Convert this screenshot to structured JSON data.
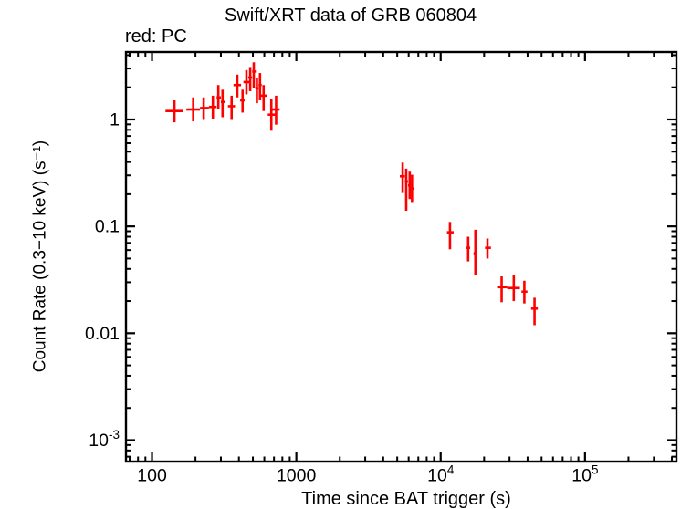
{
  "chart_data": {
    "type": "scatter",
    "title": "Swift/XRT data of GRB 060804",
    "legend_label": "red: PC",
    "xlabel": "Time since BAT trigger (s)",
    "ylabel": "Count Rate (0.3−10 keV) (s⁻¹)",
    "xscale": "log",
    "yscale": "log",
    "xlim": [
      66,
      430000
    ],
    "ylim": [
      0.00063,
      4.28
    ],
    "grid": false,
    "x_ticks": [
      {
        "v": 100,
        "label": "100"
      },
      {
        "v": 1000,
        "label": "1000"
      },
      {
        "v": 10000,
        "label": "10^4"
      },
      {
        "v": 100000,
        "label": "10^5"
      }
    ],
    "y_ticks": [
      {
        "v": 1,
        "label": "1"
      },
      {
        "v": 0.1,
        "label": "0.1"
      },
      {
        "v": 0.01,
        "label": "0.01"
      },
      {
        "v": 0.001,
        "label": "10^-3"
      }
    ],
    "styles": {
      "data_color": "#ff0000",
      "axis_color": "#000000",
      "background": "#ffffff"
    },
    "series": [
      {
        "name": "PC",
        "color": "#ff0000",
        "marker": "cross-errorbar",
        "points": [
          {
            "t": 143,
            "t_min": 124,
            "t_max": 165,
            "rate": 1.2,
            "rate_min": 0.94,
            "rate_max": 1.51
          },
          {
            "t": 193,
            "t_min": 173,
            "t_max": 215,
            "rate": 1.24,
            "rate_min": 0.96,
            "rate_max": 1.61
          },
          {
            "t": 228,
            "t_min": 215,
            "t_max": 248,
            "rate": 1.28,
            "rate_min": 0.99,
            "rate_max": 1.61
          },
          {
            "t": 264,
            "t_min": 248,
            "t_max": 280,
            "rate": 1.31,
            "rate_min": 1.02,
            "rate_max": 1.67
          },
          {
            "t": 288,
            "t_min": 280,
            "t_max": 300,
            "rate": 1.61,
            "rate_min": 1.24,
            "rate_max": 2.1
          },
          {
            "t": 308,
            "t_min": 300,
            "t_max": 319,
            "rate": 1.46,
            "rate_min": 1.05,
            "rate_max": 1.9
          },
          {
            "t": 356,
            "t_min": 336,
            "t_max": 376,
            "rate": 1.33,
            "rate_min": 0.99,
            "rate_max": 1.67
          },
          {
            "t": 390,
            "t_min": 367,
            "t_max": 414,
            "rate": 2.1,
            "rate_min": 1.61,
            "rate_max": 2.63
          },
          {
            "t": 424,
            "t_min": 408,
            "t_max": 438,
            "rate": 1.51,
            "rate_min": 1.16,
            "rate_max": 1.9
          },
          {
            "t": 451,
            "t_min": 430,
            "t_max": 479,
            "rate": 2.24,
            "rate_min": 1.72,
            "rate_max": 2.9
          },
          {
            "t": 479,
            "t_min": 464,
            "t_max": 494,
            "rate": 2.47,
            "rate_min": 1.84,
            "rate_max": 3.1
          },
          {
            "t": 507,
            "t_min": 494,
            "t_max": 524,
            "rate": 2.81,
            "rate_min": 1.96,
            "rate_max": 3.43
          },
          {
            "t": 533,
            "t_min": 520,
            "t_max": 547,
            "rate": 1.96,
            "rate_min": 1.42,
            "rate_max": 2.47
          },
          {
            "t": 560,
            "t_min": 547,
            "t_max": 576,
            "rate": 2.1,
            "rate_min": 1.51,
            "rate_max": 2.72
          },
          {
            "t": 593,
            "t_min": 568,
            "t_max": 626,
            "rate": 1.67,
            "rate_min": 1.2,
            "rate_max": 2.1
          },
          {
            "t": 671,
            "t_min": 634,
            "t_max": 718,
            "rate": 1.11,
            "rate_min": 0.785,
            "rate_max": 1.56
          },
          {
            "t": 724,
            "t_min": 678,
            "t_max": 766,
            "rate": 1.24,
            "rate_min": 0.894,
            "rate_max": 1.67
          },
          {
            "t": 5450,
            "t_min": 5210,
            "t_max": 5640,
            "rate": 0.294,
            "rate_min": 0.205,
            "rate_max": 0.395
          },
          {
            "t": 5770,
            "t_min": 5640,
            "t_max": 5940,
            "rate": 0.263,
            "rate_min": 0.14,
            "rate_max": 0.347
          },
          {
            "t": 6100,
            "t_min": 5940,
            "t_max": 6240,
            "rate": 0.242,
            "rate_min": 0.18,
            "rate_max": 0.325
          },
          {
            "t": 6330,
            "t_min": 6240,
            "t_max": 6580,
            "rate": 0.226,
            "rate_min": 0.169,
            "rate_max": 0.304
          },
          {
            "t": 11600,
            "t_min": 11050,
            "t_max": 12300,
            "rate": 0.088,
            "rate_min": 0.061,
            "rate_max": 0.11
          },
          {
            "t": 15500,
            "t_min": 15100,
            "t_max": 16000,
            "rate": 0.063,
            "rate_min": 0.047,
            "rate_max": 0.08
          },
          {
            "t": 17400,
            "t_min": 16900,
            "t_max": 17900,
            "rate": 0.056,
            "rate_min": 0.035,
            "rate_max": 0.093
          },
          {
            "t": 21100,
            "t_min": 20300,
            "t_max": 22300,
            "rate": 0.063,
            "rate_min": 0.05,
            "rate_max": 0.077
          },
          {
            "t": 26450,
            "t_min": 24600,
            "t_max": 28900,
            "rate": 0.027,
            "rate_min": 0.0195,
            "rate_max": 0.034
          },
          {
            "t": 32100,
            "t_min": 28900,
            "t_max": 35400,
            "rate": 0.0265,
            "rate_min": 0.02,
            "rate_max": 0.035
          },
          {
            "t": 38000,
            "t_min": 36300,
            "t_max": 39900,
            "rate": 0.0245,
            "rate_min": 0.019,
            "rate_max": 0.031
          },
          {
            "t": 44700,
            "t_min": 42300,
            "t_max": 47100,
            "rate": 0.017,
            "rate_min": 0.0119,
            "rate_max": 0.0215
          }
        ]
      }
    ]
  }
}
